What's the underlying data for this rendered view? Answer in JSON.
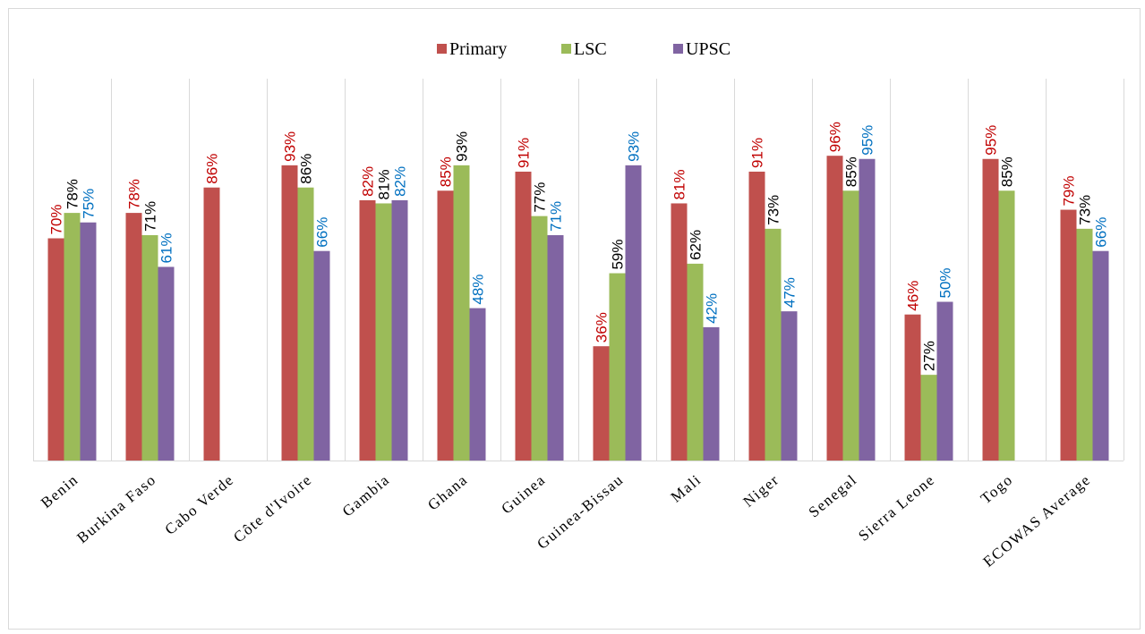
{
  "chart_data": {
    "type": "bar",
    "categories": [
      "Benin",
      "Burkina Faso",
      "Cabo Verde",
      "Côte d'Ivoire",
      "Gambia",
      "Ghana",
      "Guinea",
      "Guinea-Bissau",
      "Mali",
      "Niger",
      "Senegal",
      "Sierra Leone",
      "Togo",
      "ECOWAS Average"
    ],
    "series": [
      {
        "name": "Primary",
        "color": "#c0504d",
        "label_color": "#c00000",
        "values": [
          70,
          78,
          86,
          93,
          82,
          85,
          91,
          36,
          81,
          91,
          96,
          46,
          95,
          79
        ],
        "labels": [
          "70%",
          "78%",
          "86%",
          "93%",
          "82%",
          "85%",
          "91%",
          "36%",
          "81%",
          "91%",
          "96%",
          "46%",
          "95%",
          "79%"
        ]
      },
      {
        "name": "LSC",
        "color": "#9bbb59",
        "label_color": "#000000",
        "values": [
          78,
          71,
          null,
          86,
          81,
          93,
          77,
          59,
          62,
          73,
          85,
          27,
          85,
          73
        ],
        "labels": [
          "78%",
          "71%",
          "",
          "86%",
          "81%",
          "93%",
          "77%",
          "59%",
          "62%",
          "73%",
          "85%",
          "27%",
          "85%",
          "73%"
        ]
      },
      {
        "name": "UPSC",
        "color": "#8064a2",
        "label_color": "#0070c0",
        "values": [
          75,
          61,
          null,
          66,
          82,
          48,
          71,
          93,
          42,
          47,
          95,
          50,
          null,
          66
        ],
        "labels": [
          "75%",
          "61%",
          "",
          "66%",
          "82%",
          "48%",
          "71%",
          "93%",
          "42%",
          "47%",
          "95%",
          "50%",
          "",
          "66%"
        ]
      }
    ],
    "ylim": [
      0,
      100
    ],
    "legend_position": "top-center",
    "grid": "vertical separators between categories",
    "title": "",
    "xlabel": "",
    "ylabel": ""
  }
}
